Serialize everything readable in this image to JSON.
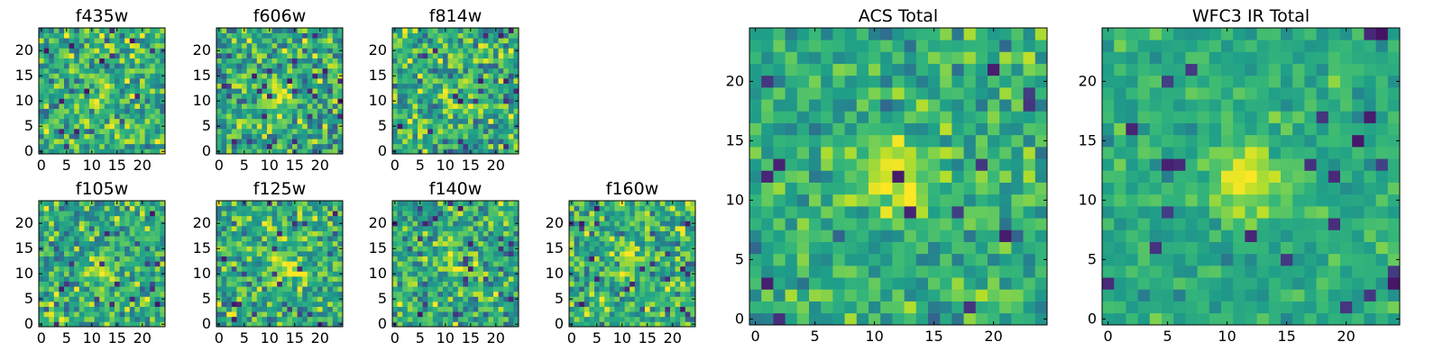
{
  "chart_data": {
    "type": "heatmap",
    "colormap": "viridis",
    "pixel_grid": [
      25,
      25
    ],
    "panels": [
      {
        "title": "f435w",
        "x_ticks": [
          "0",
          "5",
          "10",
          "15",
          "20"
        ],
        "y_ticks": [
          "0",
          "5",
          "10",
          "15",
          "20"
        ],
        "xlim": [
          -0.5,
          24.5
        ],
        "ylim": [
          -0.5,
          24.5
        ],
        "source_center": [
          12,
          11
        ],
        "source_strength": 0.15,
        "noise": 0.17,
        "seed": 11
      },
      {
        "title": "f606w",
        "x_ticks": [
          "0",
          "5",
          "10",
          "15",
          "20"
        ],
        "y_ticks": [
          "0",
          "5",
          "10",
          "15",
          "20"
        ],
        "xlim": [
          -0.5,
          24.5
        ],
        "ylim": [
          -0.5,
          24.5
        ],
        "source_center": [
          12,
          12
        ],
        "source_strength": 0.3,
        "noise": 0.17,
        "seed": 22
      },
      {
        "title": "f814w",
        "x_ticks": [
          "0",
          "5",
          "10",
          "15",
          "20"
        ],
        "y_ticks": [
          "0",
          "5",
          "10",
          "15",
          "20"
        ],
        "xlim": [
          -0.5,
          24.5
        ],
        "ylim": [
          -0.5,
          24.5
        ],
        "source_center": [
          13,
          11
        ],
        "source_strength": 0.2,
        "noise": 0.17,
        "seed": 33
      },
      {
        "title": "f105w",
        "x_ticks": [
          "0",
          "5",
          "10",
          "15",
          "20"
        ],
        "y_ticks": [
          "0",
          "5",
          "10",
          "15",
          "20"
        ],
        "xlim": [
          -0.5,
          24.5
        ],
        "ylim": [
          -0.5,
          24.5
        ],
        "source_center": [
          12,
          11
        ],
        "source_strength": 0.2,
        "noise": 0.16,
        "seed": 44
      },
      {
        "title": "f125w",
        "x_ticks": [
          "0",
          "5",
          "10",
          "15",
          "20"
        ],
        "y_ticks": [
          "0",
          "5",
          "10",
          "15",
          "20"
        ],
        "xlim": [
          -0.5,
          24.5
        ],
        "ylim": [
          -0.5,
          24.5
        ],
        "source_center": [
          13,
          12
        ],
        "source_strength": 0.3,
        "noise": 0.16,
        "seed": 55
      },
      {
        "title": "f140w",
        "x_ticks": [
          "0",
          "5",
          "10",
          "15",
          "20"
        ],
        "y_ticks": [
          "0",
          "5",
          "10",
          "15",
          "20"
        ],
        "xlim": [
          -0.5,
          24.5
        ],
        "ylim": [
          -0.5,
          24.5
        ],
        "source_center": [
          12,
          12
        ],
        "source_strength": 0.25,
        "noise": 0.16,
        "seed": 66
      },
      {
        "title": "f160w",
        "x_ticks": [
          "0",
          "5",
          "10",
          "15",
          "20"
        ],
        "y_ticks": [
          "0",
          "5",
          "10",
          "15",
          "20"
        ],
        "xlim": [
          -0.5,
          24.5
        ],
        "ylim": [
          -0.5,
          24.5
        ],
        "source_center": [
          12,
          12
        ],
        "source_strength": 0.3,
        "noise": 0.16,
        "seed": 77
      },
      {
        "title": "ACS Total",
        "x_ticks": [
          "0",
          "5",
          "10",
          "15",
          "20"
        ],
        "y_ticks": [
          "0",
          "5",
          "10",
          "15",
          "20"
        ],
        "xlim": [
          -0.5,
          24.5
        ],
        "ylim": [
          -0.5,
          24.5
        ],
        "source_center": [
          12,
          12
        ],
        "source_strength": 0.35,
        "noise": 0.12,
        "seed": 88
      },
      {
        "title": "WFC3 IR Total",
        "x_ticks": [
          "0",
          "5",
          "10",
          "15",
          "20"
        ],
        "y_ticks": [
          "0",
          "5",
          "10",
          "15",
          "20"
        ],
        "xlim": [
          -0.5,
          24.5
        ],
        "ylim": [
          -0.5,
          24.5
        ],
        "source_center": [
          12,
          12
        ],
        "source_strength": 0.35,
        "noise": 0.08,
        "seed": 99
      }
    ]
  }
}
